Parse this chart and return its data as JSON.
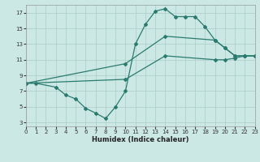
{
  "line1": {
    "x": [
      0,
      1,
      3,
      4,
      5,
      6,
      7,
      8,
      9,
      10,
      11,
      12,
      13,
      14,
      15,
      16,
      17,
      18,
      19,
      20,
      21,
      22,
      23
    ],
    "y": [
      8,
      8,
      7.5,
      6.5,
      6.0,
      4.8,
      4.2,
      3.5,
      5.0,
      7.0,
      13.0,
      15.5,
      17.2,
      17.5,
      16.5,
      16.5,
      16.5,
      15.2,
      13.5,
      12.5,
      11.5,
      11.5,
      11.5
    ]
  },
  "line2": {
    "x": [
      0,
      10,
      14,
      19,
      20,
      21,
      22,
      23
    ],
    "y": [
      8,
      10.5,
      14.0,
      13.5,
      12.5,
      11.5,
      11.5,
      11.5
    ]
  },
  "line3": {
    "x": [
      0,
      10,
      14,
      19,
      20,
      21,
      22,
      23
    ],
    "y": [
      8,
      8.5,
      11.5,
      11.0,
      11.0,
      11.2,
      11.5,
      11.5
    ]
  },
  "line_color": "#2a7b6f",
  "bg_color": "#cce8e4",
  "grid_color": "#aaccc8",
  "xlabel": "Humidex (Indice chaleur)",
  "xlim": [
    0,
    23
  ],
  "ylim": [
    2.5,
    18
  ],
  "yticks": [
    3,
    5,
    7,
    9,
    11,
    13,
    15,
    17
  ],
  "xticks": [
    0,
    1,
    2,
    3,
    4,
    5,
    6,
    7,
    8,
    9,
    10,
    11,
    12,
    13,
    14,
    15,
    16,
    17,
    18,
    19,
    20,
    21,
    22,
    23
  ],
  "marker": "D",
  "markersize": 2.0,
  "linewidth": 0.9
}
